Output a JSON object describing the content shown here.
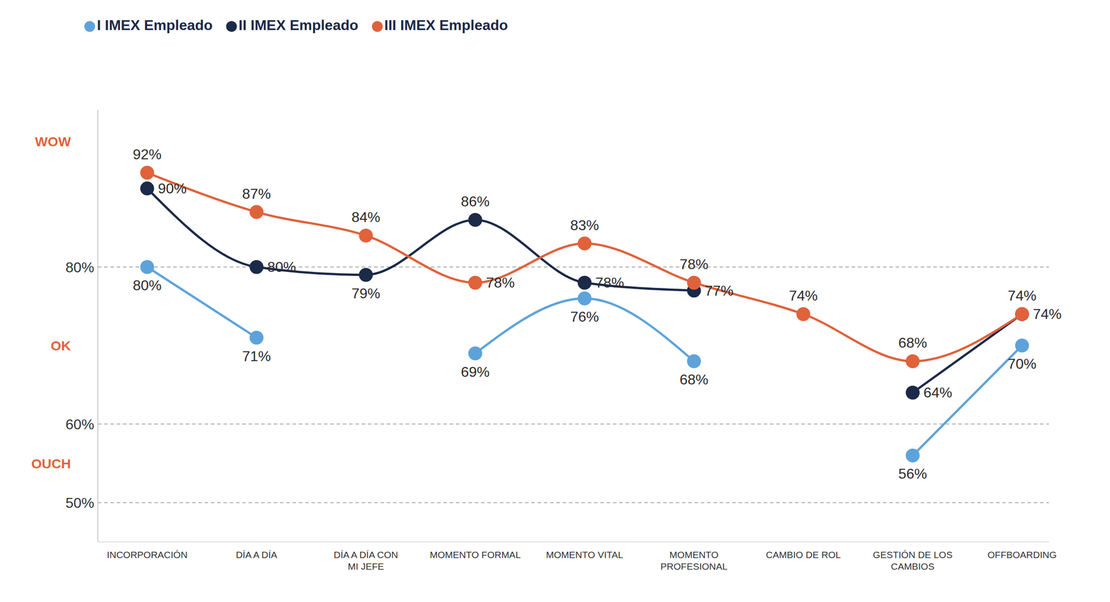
{
  "chart_data": {
    "type": "line",
    "categories": [
      "INCORPORACIÓN",
      "DÍA A DÍA",
      "DÍA A DÍA CON MI JEFE",
      "MOMENTO FORMAL",
      "MOMENTO VITAL",
      "MOMENTO PROFESIONAL",
      "CAMBIO DE ROL",
      "GESTIÓN DE LOS CAMBIOS",
      "OFFBOARDING"
    ],
    "series": [
      {
        "name": "I IMEX Empleado",
        "color": "#5DA3DA",
        "values": [
          80,
          71,
          null,
          69,
          76,
          68,
          null,
          56,
          70
        ],
        "value_labels": [
          "80%",
          "71%",
          null,
          "69%",
          "76%",
          "68%",
          null,
          "56%",
          "70%"
        ]
      },
      {
        "name": "II IMEX Empleado",
        "color": "#1B2A47",
        "values": [
          90,
          80,
          79,
          86,
          78,
          77,
          null,
          64,
          74
        ],
        "value_labels": [
          "90%",
          "80%",
          "79%",
          "86%",
          "78%",
          "77%",
          null,
          "64%",
          "74%"
        ]
      },
      {
        "name": "III IMEX Empleado",
        "color": "#E0623B",
        "values": [
          92,
          87,
          84,
          78,
          83,
          78,
          74,
          68,
          74
        ],
        "value_labels": [
          "92%",
          "87%",
          "84%",
          "78%",
          "83%",
          "78%",
          "74%",
          "68%",
          "74%"
        ]
      }
    ],
    "ylim": [
      45,
      100
    ],
    "yticks": [
      {
        "value": 50,
        "label": "50%"
      },
      {
        "value": 60,
        "label": "60%"
      },
      {
        "value": 80,
        "label": "80%"
      }
    ],
    "annotations": [
      {
        "text": "WOW",
        "y": 96
      },
      {
        "text": "OK",
        "y": 70
      },
      {
        "text": "OUCH",
        "y": 55
      }
    ],
    "grid": true,
    "legend": "top-left",
    "data_labels": true,
    "marker": "circle"
  }
}
